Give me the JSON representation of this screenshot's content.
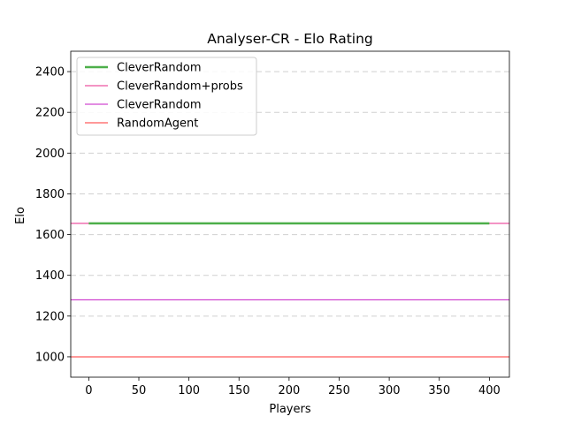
{
  "chart_data": {
    "type": "line",
    "title": "Analyser-CR - Elo Rating",
    "xlabel": "Players",
    "ylabel": "Elo",
    "xlim": [
      -18,
      420
    ],
    "ylim": [
      900,
      2500
    ],
    "x_ticks": [
      0,
      50,
      100,
      150,
      200,
      250,
      300,
      350,
      400
    ],
    "y_ticks": [
      1000,
      1200,
      1400,
      1600,
      1800,
      2000,
      2200,
      2400
    ],
    "grid": "y-dashed",
    "legend_position": "top-left",
    "series": [
      {
        "name": "CleverRandom",
        "kind": "line",
        "x": [
          0,
          400
        ],
        "y": [
          1655,
          1655
        ],
        "color": "#4daf4a",
        "width": 2.5
      },
      {
        "name": "CleverRandom+probs",
        "kind": "hline",
        "y": 1655,
        "color": "#e7298a",
        "width": 1
      },
      {
        "name": "CleverRandom",
        "kind": "hline",
        "y": 1280,
        "color": "#c51bc5",
        "width": 1
      },
      {
        "name": "RandomAgent",
        "kind": "hline",
        "y": 1000,
        "color": "#ff3333",
        "width": 1
      }
    ]
  }
}
